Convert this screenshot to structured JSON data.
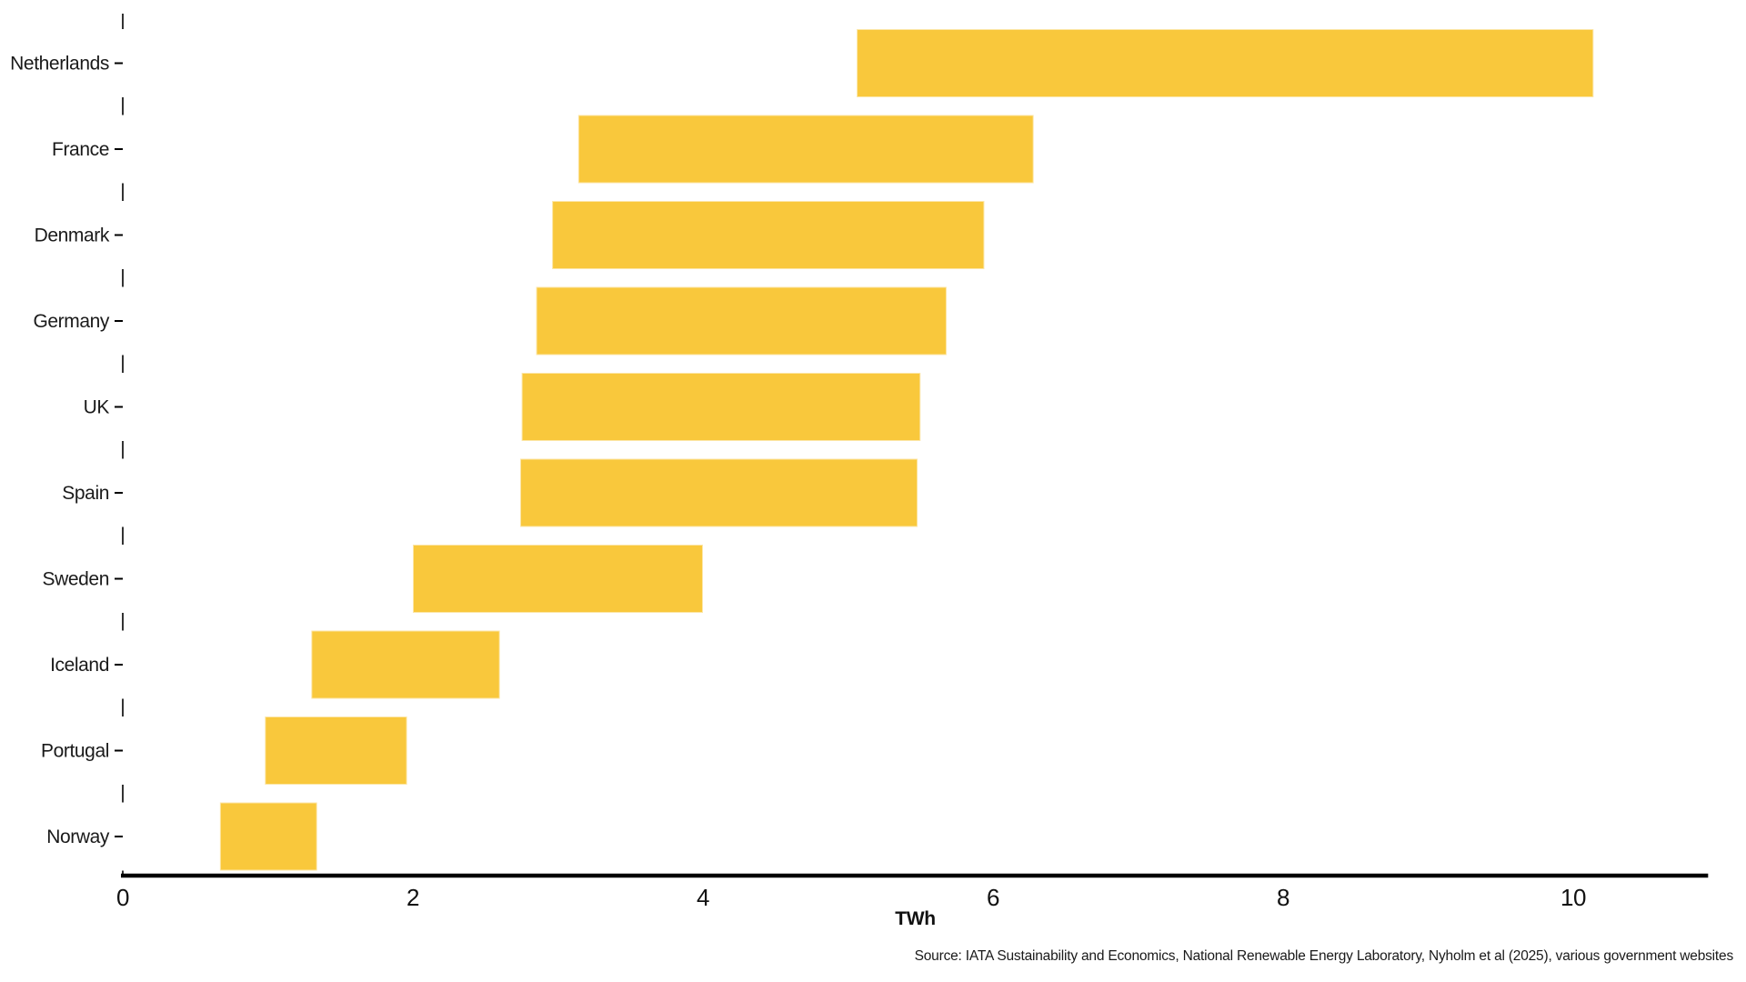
{
  "chart_data": {
    "type": "bar",
    "orientation": "horizontal",
    "bar_style": "floating-range",
    "title": "",
    "xlabel": "TWh",
    "ylabel": "",
    "categories": [
      "Netherlands",
      "France",
      "Denmark",
      "Germany",
      "UK",
      "Spain",
      "Sweden",
      "Iceland",
      "Portugal",
      "Norway"
    ],
    "ranges": [
      [
        5.06,
        10.14
      ],
      [
        3.14,
        6.28
      ],
      [
        2.96,
        5.94
      ],
      [
        2.85,
        5.68
      ],
      [
        2.75,
        5.5
      ],
      [
        2.74,
        5.48
      ],
      [
        2.0,
        4.0
      ],
      [
        1.3,
        2.6
      ],
      [
        0.98,
        1.96
      ],
      [
        0.67,
        1.34
      ]
    ],
    "xlim": [
      0,
      10.93
    ],
    "xticks": [
      0,
      2,
      4,
      6,
      8,
      10
    ],
    "grid": false,
    "legend": null,
    "bar_color": "#F9C83C",
    "axis_color": "#000000",
    "text_color": "#1a1a1a",
    "source": "Source: IATA Sustainability and Economics, National Renewable Energy Laboratory, Nyholm et al (2025), various government websites"
  }
}
